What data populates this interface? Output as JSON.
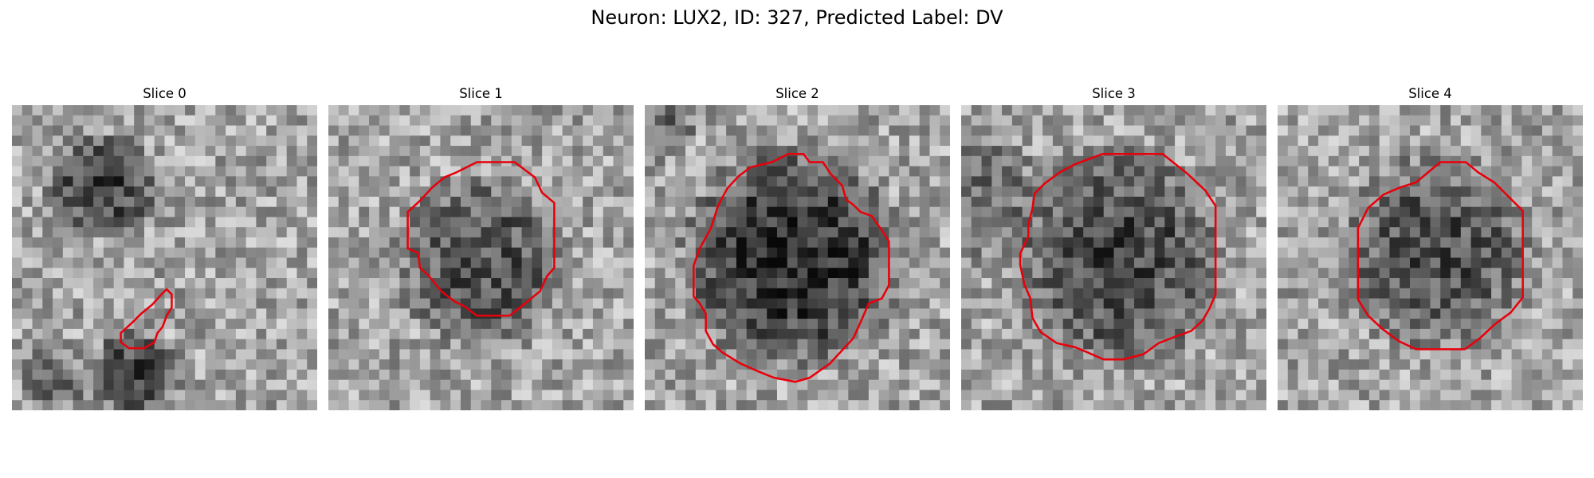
{
  "figure": {
    "title": "Neuron: LUX2, ID: 327, Predicted Label: DV"
  },
  "panels": [
    {
      "title": "Slice 0",
      "blobs": [
        {
          "cx": 9,
          "cy": 8,
          "rx": 5,
          "ry": 4.5,
          "depth": 105
        },
        {
          "cx": 12,
          "cy": 26.5,
          "rx": 4,
          "ry": 4,
          "depth": 100
        },
        {
          "cx": 4,
          "cy": 27,
          "rx": 3,
          "ry": 3,
          "depth": 60
        }
      ],
      "contour": [
        [
          152,
          181
        ],
        [
          157,
          186
        ],
        [
          157,
          199
        ],
        [
          152,
          207
        ],
        [
          148,
          218
        ],
        [
          143,
          224
        ],
        [
          140,
          233
        ],
        [
          130,
          239
        ],
        [
          115,
          239
        ],
        [
          107,
          233
        ],
        [
          107,
          224
        ],
        [
          118,
          214
        ],
        [
          127,
          205
        ],
        [
          138,
          196
        ],
        [
          146,
          187
        ]
      ]
    },
    {
      "title": "Slice 1",
      "blobs": [
        {
          "cx": 15,
          "cy": 15.5,
          "rx": 7.5,
          "ry": 7.5,
          "depth": 85
        }
      ],
      "contour": [
        [
          146,
          56
        ],
        [
          183,
          56
        ],
        [
          203,
          71
        ],
        [
          210,
          86
        ],
        [
          222,
          96
        ],
        [
          222,
          160
        ],
        [
          215,
          168
        ],
        [
          208,
          183
        ],
        [
          192,
          196
        ],
        [
          178,
          207
        ],
        [
          146,
          207
        ],
        [
          134,
          198
        ],
        [
          124,
          193
        ],
        [
          111,
          183
        ],
        [
          98,
          167
        ],
        [
          90,
          160
        ],
        [
          88,
          145
        ],
        [
          78,
          141
        ],
        [
          78,
          105
        ],
        [
          90,
          94
        ],
        [
          102,
          81
        ],
        [
          114,
          71
        ],
        [
          126,
          66
        ]
      ]
    },
    {
      "title": "Slice 2",
      "blobs": [
        {
          "cx": 14.5,
          "cy": 15,
          "rx": 9.5,
          "ry": 9.5,
          "depth": 125
        },
        {
          "cx": 2,
          "cy": 2,
          "rx": 3,
          "ry": 3,
          "depth": 55
        }
      ],
      "contour": [
        [
          141,
          48
        ],
        [
          156,
          48
        ],
        [
          162,
          56
        ],
        [
          175,
          56
        ],
        [
          183,
          68
        ],
        [
          194,
          79
        ],
        [
          198,
          93
        ],
        [
          205,
          98
        ],
        [
          212,
          105
        ],
        [
          223,
          109
        ],
        [
          233,
          123
        ],
        [
          240,
          134
        ],
        [
          240,
          177
        ],
        [
          233,
          190
        ],
        [
          220,
          195
        ],
        [
          214,
          209
        ],
        [
          205,
          229
        ],
        [
          182,
          254
        ],
        [
          162,
          268
        ],
        [
          148,
          272
        ],
        [
          127,
          268
        ],
        [
          112,
          262
        ],
        [
          94,
          254
        ],
        [
          76,
          243
        ],
        [
          67,
          235
        ],
        [
          60,
          222
        ],
        [
          60,
          205
        ],
        [
          54,
          195
        ],
        [
          48,
          188
        ],
        [
          48,
          158
        ],
        [
          54,
          141
        ],
        [
          65,
          121
        ],
        [
          72,
          99
        ],
        [
          81,
          82
        ],
        [
          92,
          70
        ],
        [
          104,
          61
        ],
        [
          125,
          56
        ]
      ]
    },
    {
      "title": "Slice 3",
      "blobs": [
        {
          "cx": 15.5,
          "cy": 15,
          "rx": 9,
          "ry": 9.5,
          "depth": 95
        },
        {
          "cx": 3,
          "cy": 9,
          "rx": 4,
          "ry": 6,
          "depth": 55
        }
      ],
      "contour": [
        [
          139,
          48
        ],
        [
          198,
          48
        ],
        [
          223,
          68
        ],
        [
          240,
          84
        ],
        [
          250,
          99
        ],
        [
          250,
          186
        ],
        [
          244,
          200
        ],
        [
          237,
          212
        ],
        [
          226,
          222
        ],
        [
          212,
          227
        ],
        [
          194,
          234
        ],
        [
          179,
          245
        ],
        [
          159,
          250
        ],
        [
          140,
          250
        ],
        [
          124,
          243
        ],
        [
          112,
          238
        ],
        [
          94,
          234
        ],
        [
          78,
          223
        ],
        [
          70,
          209
        ],
        [
          68,
          190
        ],
        [
          62,
          176
        ],
        [
          58,
          157
        ],
        [
          58,
          146
        ],
        [
          66,
          129
        ],
        [
          66,
          117
        ],
        [
          70,
          102
        ],
        [
          72,
          87
        ],
        [
          82,
          77
        ],
        [
          97,
          66
        ],
        [
          112,
          58
        ]
      ]
    },
    {
      "title": "Slice 4",
      "blobs": [
        {
          "cx": 15.5,
          "cy": 14.5,
          "rx": 8.5,
          "ry": 8.5,
          "depth": 85
        }
      ],
      "contour": [
        [
          160,
          56
        ],
        [
          185,
          56
        ],
        [
          197,
          66
        ],
        [
          213,
          76
        ],
        [
          226,
          89
        ],
        [
          241,
          104
        ],
        [
          241,
          189
        ],
        [
          229,
          204
        ],
        [
          214,
          215
        ],
        [
          199,
          229
        ],
        [
          184,
          240
        ],
        [
          136,
          240
        ],
        [
          119,
          232
        ],
        [
          103,
          220
        ],
        [
          89,
          207
        ],
        [
          79,
          191
        ],
        [
          79,
          121
        ],
        [
          89,
          101
        ],
        [
          104,
          88
        ],
        [
          120,
          81
        ],
        [
          136,
          76
        ],
        [
          148,
          66
        ]
      ]
    }
  ]
}
